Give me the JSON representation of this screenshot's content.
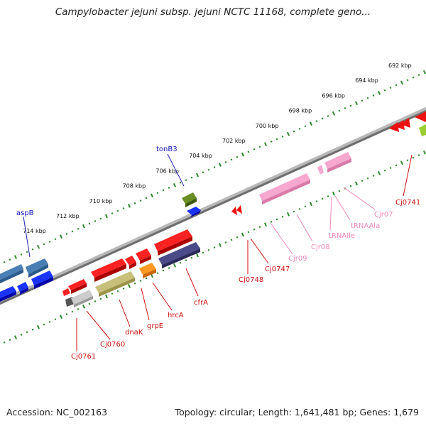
{
  "title": "Campylobacter jejuni subsp. jejuni NCTC 11168, complete geno...",
  "footer": {
    "accession": "Accession: NC_002163",
    "summary": "Topology: circular; Length: 1,641,481 bp; Genes: 1,679"
  },
  "scale_labels": [
    "692 kbp",
    "694 kbp",
    "696 kbp",
    "698 kbp",
    "700 kbp",
    "702 kbp",
    "704 kbp",
    "706 kbp",
    "708 kbp",
    "710 kbp",
    "712 kbp",
    "714 kbp"
  ],
  "gene_labels": {
    "aspB": "aspB",
    "tonB3": "tonB3",
    "cj0761": "Cj0761",
    "cj0760": "Cj0760",
    "dnaK": "dnaK",
    "grpE": "grpE",
    "hrcA": "hrcA",
    "cfrA": "cfrA",
    "cj0748": "Cj0748",
    "cj0747": "Cj0747",
    "cjr09": "Cjr09",
    "cjr08": "Cjr08",
    "trnaile": "tRNAIle",
    "trnaala": "tRNAAla",
    "cjr07": "Cjr07",
    "cj0741": "Cj0741"
  },
  "colors": {
    "cds": "#ee1111",
    "rna": "#f58fc0",
    "label_red": "#cc1111",
    "label_pink": "#ee88bb",
    "label_blue": "#1111bb",
    "backbone": "#777777",
    "ticks": "#2d8a2d"
  }
}
